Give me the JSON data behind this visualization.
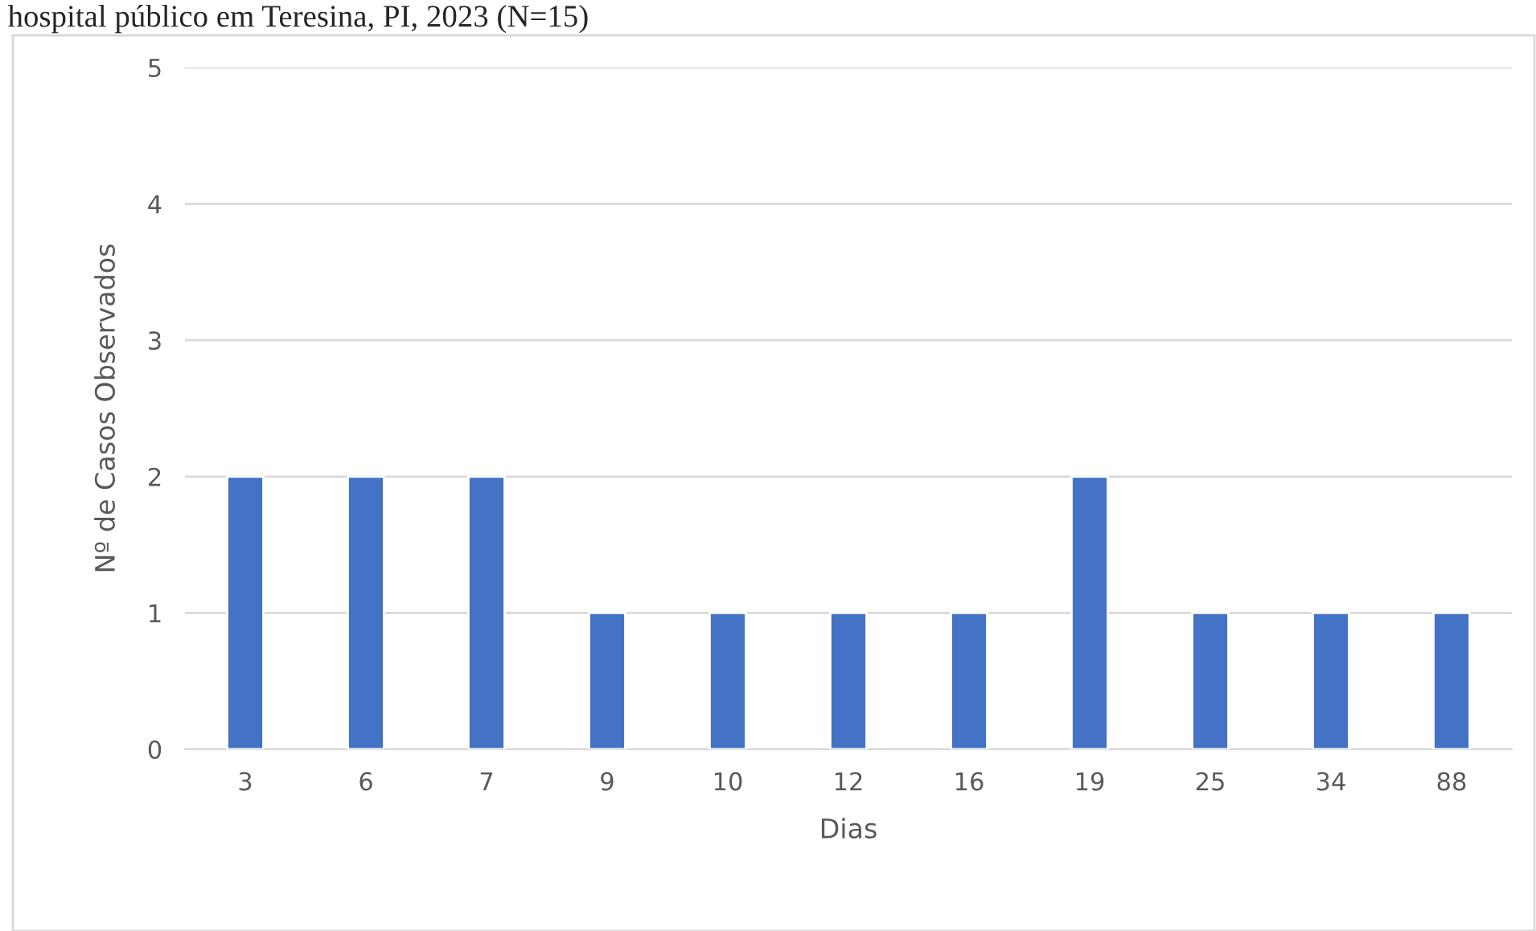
{
  "chart_data": {
    "type": "bar",
    "title": "hospital público em Teresina, PI, 2023 (N=15)",
    "xlabel": "Dias",
    "ylabel": "Nº de Casos Observados",
    "categories": [
      "3",
      "6",
      "7",
      "9",
      "10",
      "12",
      "16",
      "19",
      "25",
      "34",
      "88"
    ],
    "values": [
      2,
      2,
      2,
      1,
      1,
      1,
      1,
      2,
      1,
      1,
      1
    ],
    "color": "#4472c4",
    "ylim": [
      0,
      5
    ],
    "yticks": [
      0,
      1,
      2,
      3,
      4,
      5
    ],
    "grid": "y",
    "legend": false
  }
}
